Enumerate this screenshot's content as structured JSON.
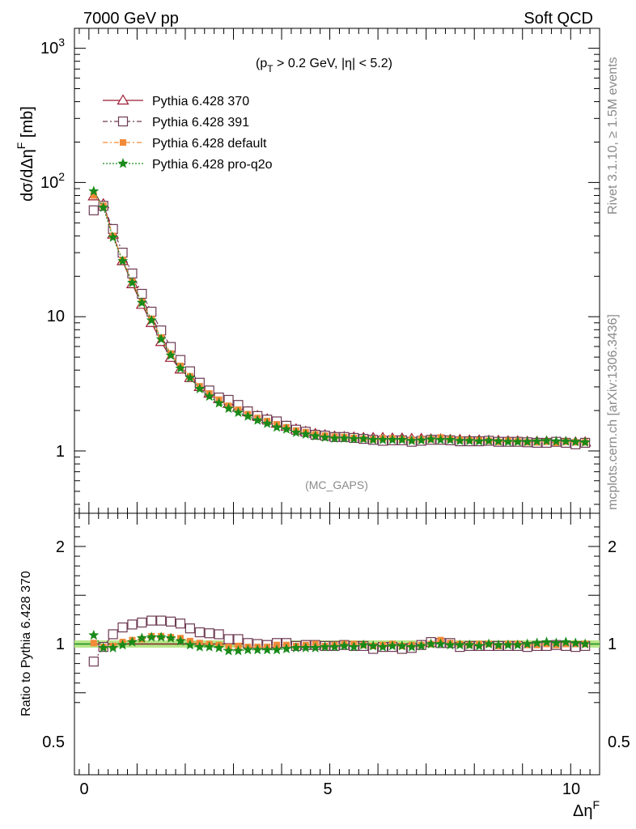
{
  "header": {
    "left": "7000 GeV pp",
    "right": "Soft QCD"
  },
  "side": {
    "rivet": "Rivet 3.1.10, ≥ 1.5M events",
    "mcplots": "mcplots.cern.ch [arXiv:1306.3436]"
  },
  "watermark": "(MC_GAPS)",
  "cut": {
    "p": "(p",
    "t": "T",
    "rest": " > 0.2 GeV, |η| < 5.2)"
  },
  "ylabel_main": {
    "base": "dσ/dΔη",
    "sup": "F",
    "unit": " [mb]"
  },
  "ylabel_ratio": "Ratio to Pythia 6.428 370",
  "xlabel": {
    "base": "Δη",
    "sup": "F"
  },
  "colors": {
    "s370": "#9b1b30",
    "s391": "#6d3a52",
    "default": "#f28a38",
    "proq2o": "#1a8a1a",
    "band": "#b7e68a"
  },
  "chart_data": [
    {
      "type": "scatter",
      "title": "",
      "xlabel": "ΔηF",
      "ylabel": "dσ/dΔηF [mb]",
      "xlim": [
        -0.3,
        10.6
      ],
      "ylim": [
        0.3,
        1350
      ],
      "log_y": true,
      "x_ticks": [
        "0",
        "5",
        "10"
      ],
      "y_ticks": [
        "1",
        "10",
        "10^2",
        "10^3"
      ],
      "legend_position": "top-left",
      "x": [
        0.1,
        0.3,
        0.5,
        0.7,
        0.9,
        1.1,
        1.3,
        1.5,
        1.7,
        1.9,
        2.1,
        2.3,
        2.5,
        2.7,
        2.9,
        3.1,
        3.3,
        3.5,
        3.7,
        3.9,
        4.1,
        4.3,
        4.5,
        4.7,
        4.9,
        5.1,
        5.3,
        5.5,
        5.7,
        5.9,
        6.1,
        6.3,
        6.5,
        6.7,
        6.9,
        7.1,
        7.3,
        7.5,
        7.7,
        7.9,
        8.1,
        8.3,
        8.5,
        8.7,
        8.9,
        9.1,
        9.3,
        9.5,
        9.7,
        9.9,
        10.1,
        10.3
      ],
      "series": [
        {
          "name": "Pythia 6.428 370",
          "marker": "triangle",
          "line": "solid",
          "values": [
            79,
            69,
            41,
            26,
            17.5,
            12.3,
            9.0,
            6.5,
            4.95,
            4.05,
            3.5,
            3.0,
            2.68,
            2.44,
            2.25,
            2.1,
            1.95,
            1.82,
            1.72,
            1.6,
            1.52,
            1.45,
            1.39,
            1.34,
            1.31,
            1.28,
            1.27,
            1.26,
            1.25,
            1.25,
            1.25,
            1.24,
            1.24,
            1.23,
            1.23,
            1.22,
            1.22,
            1.21,
            1.21,
            1.2,
            1.2,
            1.19,
            1.19,
            1.18,
            1.18,
            1.17,
            1.17,
            1.17,
            1.16,
            1.16,
            1.16,
            1.16
          ]
        },
        {
          "name": "Pythia 6.428 391",
          "marker": "open-square",
          "line": "dash-dot",
          "values": [
            62,
            67,
            45,
            30,
            21,
            14.8,
            10.9,
            7.9,
            5.95,
            4.76,
            3.92,
            3.22,
            2.82,
            2.5,
            2.4,
            2.2,
            1.97,
            1.82,
            1.71,
            1.66,
            1.54,
            1.44,
            1.39,
            1.32,
            1.3,
            1.27,
            1.27,
            1.25,
            1.23,
            1.21,
            1.19,
            1.2,
            1.2,
            1.17,
            1.19,
            1.21,
            1.21,
            1.2,
            1.18,
            1.18,
            1.18,
            1.19,
            1.17,
            1.17,
            1.17,
            1.16,
            1.15,
            1.15,
            1.17,
            1.15,
            1.12,
            1.15
          ]
        },
        {
          "name": "Pythia 6.428 default",
          "marker": "filled-square",
          "line": "dash-dot",
          "values": [
            80,
            67,
            40,
            26.5,
            18.2,
            12.9,
            9.6,
            7.0,
            5.31,
            4.3,
            3.6,
            3.03,
            2.68,
            2.41,
            2.17,
            2.03,
            1.88,
            1.76,
            1.67,
            1.58,
            1.5,
            1.42,
            1.38,
            1.33,
            1.3,
            1.28,
            1.27,
            1.25,
            1.23,
            1.22,
            1.24,
            1.24,
            1.22,
            1.21,
            1.22,
            1.22,
            1.26,
            1.22,
            1.21,
            1.2,
            1.2,
            1.19,
            1.17,
            1.19,
            1.18,
            1.16,
            1.16,
            1.17,
            1.15,
            1.17,
            1.16,
            1.16
          ]
        },
        {
          "name": "Pythia 6.428 pro-q2o",
          "marker": "star",
          "line": "dotted",
          "values": [
            86,
            65,
            39,
            26,
            17.9,
            12.7,
            9.4,
            6.8,
            5.15,
            4.12,
            3.5,
            2.9,
            2.55,
            2.27,
            2.07,
            1.93,
            1.81,
            1.69,
            1.6,
            1.5,
            1.45,
            1.37,
            1.33,
            1.29,
            1.26,
            1.24,
            1.24,
            1.23,
            1.23,
            1.21,
            1.21,
            1.21,
            1.21,
            1.19,
            1.2,
            1.22,
            1.21,
            1.21,
            1.19,
            1.19,
            1.18,
            1.19,
            1.18,
            1.17,
            1.17,
            1.17,
            1.18,
            1.19,
            1.18,
            1.18,
            1.17,
            1.16
          ]
        }
      ]
    },
    {
      "type": "scatter",
      "title": "",
      "xlabel": "ΔηF",
      "ylabel": "Ratio to Pythia 6.428 370",
      "xlim": [
        -0.3,
        10.6
      ],
      "ylim": [
        0.34,
        2.3
      ],
      "x_ticks": [
        "0",
        "5",
        "10"
      ],
      "y_ticks": [
        "0.5",
        "1",
        "2"
      ],
      "x": [
        0.1,
        0.3,
        0.5,
        0.7,
        0.9,
        1.1,
        1.3,
        1.5,
        1.7,
        1.9,
        2.1,
        2.3,
        2.5,
        2.7,
        2.9,
        3.1,
        3.3,
        3.5,
        3.7,
        3.9,
        4.1,
        4.3,
        4.5,
        4.7,
        4.9,
        5.1,
        5.3,
        5.5,
        5.7,
        5.9,
        6.1,
        6.3,
        6.5,
        6.7,
        6.9,
        7.1,
        7.3,
        7.5,
        7.7,
        7.9,
        8.1,
        8.3,
        8.5,
        8.7,
        8.9,
        9.1,
        9.3,
        9.5,
        9.7,
        9.9,
        10.1,
        10.3
      ],
      "series": [
        {
          "name": "Pythia 6.428 370",
          "values": [
            1,
            1,
            1,
            1,
            1,
            1,
            1,
            1,
            1,
            1,
            1,
            1,
            1,
            1,
            1,
            1,
            1,
            1,
            1,
            1,
            1,
            1,
            1,
            1,
            1,
            1,
            1,
            1,
            1,
            1,
            1,
            1,
            1,
            1,
            1,
            1,
            1,
            1,
            1,
            1,
            1,
            1,
            1,
            1,
            1,
            1,
            1,
            1,
            1,
            1,
            1,
            1
          ]
        },
        {
          "name": "Pythia 6.428 391",
          "values": [
            0.82,
            0.97,
            1.1,
            1.17,
            1.2,
            1.22,
            1.24,
            1.24,
            1.23,
            1.21,
            1.16,
            1.12,
            1.11,
            1.1,
            1.05,
            1.05,
            1.01,
            1,
            0.99,
            1.01,
            1.01,
            0.98,
            0.99,
            0.99,
            0.98,
            0.98,
            0.99,
            0.98,
            0.98,
            0.95,
            0.97,
            0.97,
            0.95,
            0.96,
            0.99,
            1.02,
            1.01,
            1.01,
            0.97,
            0.98,
            0.98,
            0.98,
            0.98,
            0.98,
            0.98,
            0.97,
            0.98,
            0.98,
            0.99,
            0.98,
            0.97,
            0.98
          ]
        },
        {
          "name": "Pythia 6.428 default",
          "values": [
            1.01,
            0.97,
            0.98,
            1.02,
            1.04,
            1.05,
            1.08,
            1.08,
            1.07,
            1.06,
            1.03,
            1.01,
            1,
            0.99,
            0.97,
            0.98,
            0.97,
            0.97,
            0.97,
            0.99,
            0.99,
            0.98,
            0.99,
            1,
            0.98,
            0.99,
            1,
            1,
            0.99,
            0.98,
            0.99,
            1,
            0.98,
            0.99,
            0.99,
            1,
            1.04,
            1.01,
            1,
            0.99,
            1,
            1,
            0.98,
            1,
            1,
            0.99,
            0.99,
            1,
            0.99,
            1,
            1,
            1
          ]
        },
        {
          "name": "Pythia 6.428 pro-q2o",
          "values": [
            1.09,
            0.96,
            0.96,
            0.99,
            1.02,
            1.06,
            1.07,
            1.07,
            1.06,
            1.03,
            0.99,
            0.97,
            0.97,
            0.96,
            0.93,
            0.93,
            0.94,
            0.94,
            0.94,
            0.94,
            0.95,
            0.96,
            0.96,
            0.96,
            0.97,
            0.97,
            0.98,
            0.97,
            0.99,
            0.98,
            0.97,
            0.98,
            0.98,
            0.97,
            0.98,
            1,
            1,
            0.99,
            0.99,
            0.99,
            0.98,
            1,
            0.99,
            0.99,
            0.99,
            1,
            1.01,
            1.02,
            1.01,
            1.02,
            1.01,
            1
          ]
        }
      ]
    }
  ]
}
